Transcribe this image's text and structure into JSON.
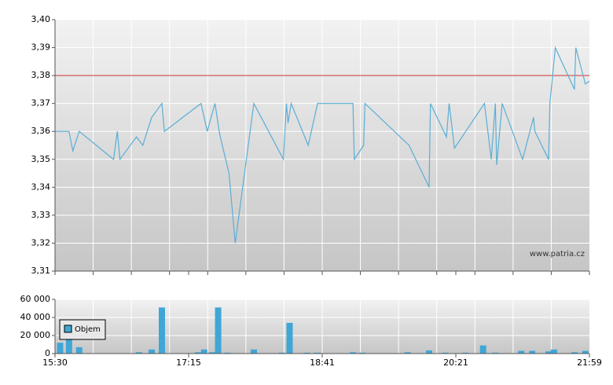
{
  "chart_data": [
    {
      "type": "line",
      "watermark": "www.patria.cz",
      "xlim": [
        "15:30",
        "21:59"
      ],
      "xticks": [
        "15:30",
        "17:15",
        "18:41",
        "20:21",
        "21:59"
      ],
      "x": [
        "15:30",
        "15:41",
        "15:44",
        "15:49",
        "16:16",
        "16:19",
        "16:21",
        "16:34",
        "16:39",
        "16:46",
        "16:54",
        "16:56",
        "17:23",
        "17:27",
        "17:32",
        "17:35",
        "17:41",
        "17:45",
        "17:57",
        "18:16",
        "18:18",
        "18:19",
        "18:21",
        "18:32",
        "18:38",
        "19:04",
        "19:05",
        "19:12",
        "19:13",
        "19:46",
        "20:01",
        "20:02",
        "20:14",
        "20:16",
        "20:20",
        "20:42",
        "20:47",
        "20:50",
        "20:51",
        "20:55",
        "21:10",
        "21:18",
        "21:19",
        "21:29",
        "21:30",
        "21:34",
        "21:48",
        "21:49",
        "21:56",
        "21:59"
      ],
      "values": [
        3.36,
        3.36,
        3.353,
        3.36,
        3.35,
        3.36,
        3.35,
        3.358,
        3.355,
        3.365,
        3.37,
        3.36,
        3.37,
        3.36,
        3.37,
        3.359,
        3.345,
        3.32,
        3.37,
        3.35,
        3.37,
        3.363,
        3.37,
        3.355,
        3.37,
        3.37,
        3.35,
        3.355,
        3.37,
        3.355,
        3.34,
        3.37,
        3.358,
        3.37,
        3.354,
        3.37,
        3.35,
        3.37,
        3.348,
        3.37,
        3.35,
        3.365,
        3.36,
        3.35,
        3.37,
        3.39,
        3.375,
        3.39,
        3.377,
        3.378
      ],
      "color": "#5aaed6",
      "reference_line": 3.38,
      "reference_color": "#cc3333",
      "ylim": [
        3.31,
        3.4
      ],
      "yticks": [
        {
          "value": 3.31,
          "label": "3,31"
        },
        {
          "value": 3.32,
          "label": "3,32"
        },
        {
          "value": 3.33,
          "label": "3,33"
        },
        {
          "value": 3.34,
          "label": "3,34"
        },
        {
          "value": 3.35,
          "label": "3,35"
        },
        {
          "value": 3.36,
          "label": "3,36"
        },
        {
          "value": 3.37,
          "label": "3,37"
        },
        {
          "value": 3.38,
          "label": "3,38"
        },
        {
          "value": 3.39,
          "label": "3,39"
        },
        {
          "value": 3.4,
          "label": "3,40"
        }
      ],
      "grid": true
    },
    {
      "type": "bar",
      "xlim": [
        "15:30",
        "21:59"
      ],
      "xticks": [
        "15:30",
        "17:15",
        "18:41",
        "20:21",
        "21:59"
      ],
      "x": [
        "15:34",
        "15:41",
        "15:49",
        "16:36",
        "16:46",
        "16:54",
        "17:21",
        "17:25",
        "17:30",
        "17:34",
        "17:40",
        "17:57",
        "18:15",
        "18:20",
        "18:31",
        "18:38",
        "19:04",
        "19:11",
        "19:45",
        "20:01",
        "20:13",
        "20:28",
        "20:41",
        "20:50",
        "21:09",
        "21:17",
        "21:29",
        "21:33",
        "21:48",
        "21:56"
      ],
      "series": [
        {
          "name": "Objem",
          "color": "#3fa6d6",
          "values": [
            12000,
            20000,
            7000,
            1500,
            4500,
            51000,
            1500,
            4500,
            1500,
            51000,
            1000,
            4500,
            1000,
            34000,
            1000,
            1000,
            1500,
            1000,
            1500,
            3500,
            1000,
            1000,
            9000,
            1000,
            3000,
            3000,
            2500,
            4500,
            1500,
            3000
          ]
        }
      ],
      "ylim": [
        0,
        60000
      ],
      "yticks": [
        0,
        {
          "value": 20000,
          "label": "20 000"
        },
        {
          "value": 40000,
          "label": "40 000"
        },
        {
          "value": 60000,
          "label": "60 000"
        }
      ],
      "grid": true
    }
  ]
}
